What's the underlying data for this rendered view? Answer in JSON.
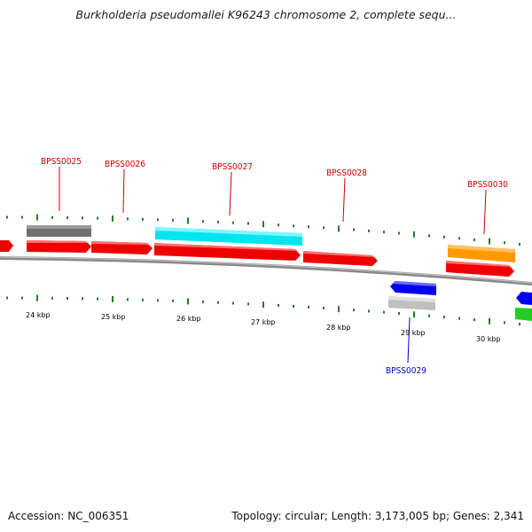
{
  "title": "Burkholderia pseudomallei K96243 chromosome 2, complete sequ...",
  "footer": {
    "accession": "Accession: NC_006351",
    "summary": "Topology: circular; Length: 3,173,005 bp; Genes: 2,341"
  },
  "colors": {
    "backbone": "#8a8a8a",
    "ticks": "#2a7a2a",
    "label_forward": "#cc0000",
    "label_reverse": "#0000cc"
  },
  "scale_labels": [
    "24 kbp",
    "25 kbp",
    "26 kbp",
    "27 kbp",
    "28 kbp",
    "29 kbp",
    "30 kbp"
  ],
  "gene_labels": [
    {
      "id": "BPSS0025",
      "color": "#cc0000"
    },
    {
      "id": "BPSS0026",
      "color": "#cc0000"
    },
    {
      "id": "BPSS0027",
      "color": "#cc0000"
    },
    {
      "id": "BPSS0028",
      "color": "#cc0000"
    },
    {
      "id": "BPSS0029",
      "color": "#0000cc"
    },
    {
      "id": "BPSS0030",
      "color": "#cc0000"
    }
  ]
}
